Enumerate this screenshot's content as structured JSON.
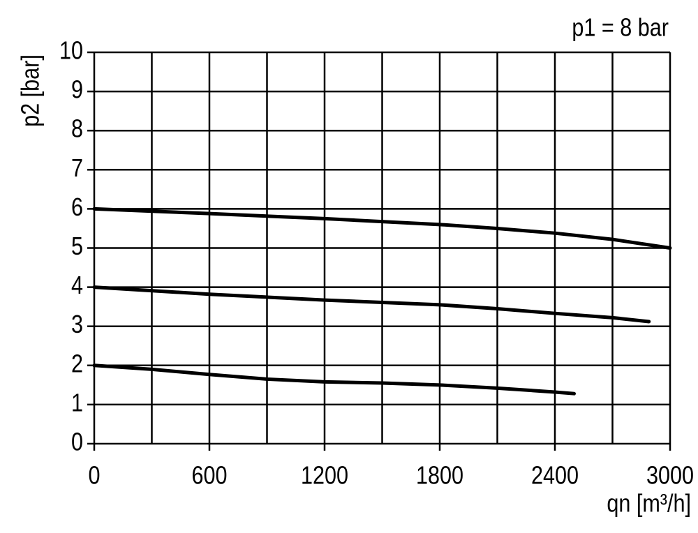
{
  "chart_data": {
    "type": "line",
    "annotation": "p1 = 8 bar",
    "y_label": "p2 [bar]",
    "x_label": "qn [m³/h]",
    "xlim": [
      0,
      3000
    ],
    "xticks": [
      0,
      600,
      1200,
      1800,
      2400,
      3000
    ],
    "x_gridlines": [
      0,
      300,
      600,
      900,
      1200,
      1500,
      1800,
      2100,
      2400,
      2700,
      3000
    ],
    "ylim": [
      0,
      10
    ],
    "yticks": [
      0,
      1,
      2,
      3,
      4,
      5,
      6,
      7,
      8,
      9,
      10
    ],
    "grid": true,
    "series": [
      {
        "color": "#000000",
        "x": [
          0,
          600,
          1200,
          1800,
          2100,
          2400,
          2700,
          3000
        ],
        "values": [
          6.0,
          5.88,
          5.75,
          5.6,
          5.5,
          5.38,
          5.22,
          5.0
        ]
      },
      {
        "color": "#000000",
        "x": [
          0,
          600,
          1200,
          1800,
          2100,
          2400,
          2700,
          2890
        ],
        "values": [
          4.0,
          3.82,
          3.67,
          3.55,
          3.45,
          3.33,
          3.22,
          3.12
        ]
      },
      {
        "color": "#000000",
        "x": [
          0,
          300,
          600,
          900,
          1200,
          1500,
          1800,
          2100,
          2400,
          2500
        ],
        "values": [
          2.0,
          1.9,
          1.77,
          1.65,
          1.58,
          1.55,
          1.5,
          1.42,
          1.32,
          1.28
        ]
      }
    ]
  }
}
